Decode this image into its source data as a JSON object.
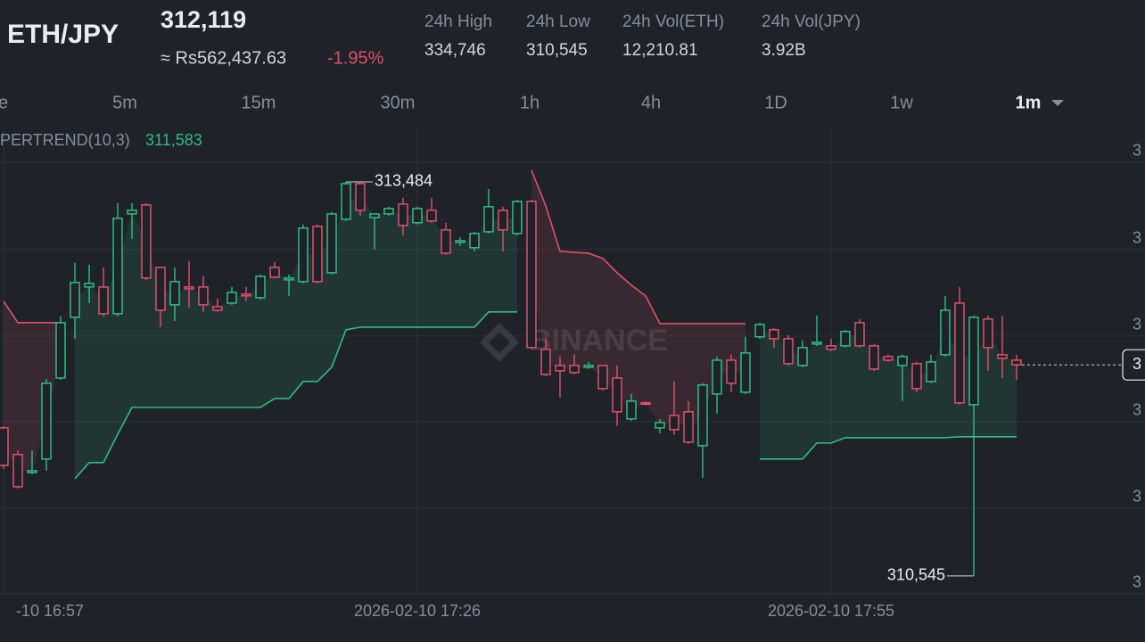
{
  "header": {
    "symbol": "ETH/JPY",
    "price": "312,119",
    "converted": "≈ Rs562,437.63",
    "change": "-1.95%",
    "stats": [
      {
        "label": "24h High",
        "value": "334,746"
      },
      {
        "label": "24h Low",
        "value": "310,545"
      },
      {
        "label": "24h Vol(ETH)",
        "value": "12,210.81"
      },
      {
        "label": "24h Vol(JPY)",
        "value": "3.92B"
      }
    ]
  },
  "intervals": [
    "e",
    "5m",
    "15m",
    "30m",
    "1h",
    "4h",
    "1D",
    "1w",
    "1m"
  ],
  "active_interval": "1m",
  "chart_data": {
    "type": "candlestick",
    "watermark": "BINANCE",
    "up_color": "#2ebd85",
    "down_color": "#e0506a",
    "categories": [
      "-10 16:57",
      null,
      null,
      null,
      null,
      null,
      null,
      null,
      null,
      null,
      null,
      null,
      null,
      null,
      null,
      null,
      null,
      null,
      null,
      null,
      null,
      null,
      null,
      null,
      null,
      null,
      null,
      null,
      null,
      "2026-02-10 17:26",
      null,
      null,
      null,
      null,
      null,
      null,
      null,
      null,
      null,
      null,
      null,
      null,
      null,
      null,
      null,
      null,
      null,
      null,
      null,
      null,
      null,
      null,
      null,
      null,
      null,
      null,
      null,
      null,
      "2026-02-10 17:55",
      null,
      null,
      null,
      null,
      null,
      null,
      null,
      null,
      null,
      null,
      null,
      null,
      null
    ],
    "open": [
      311649,
      311450,
      311317,
      311417,
      312021,
      312474,
      312700,
      312700,
      312501,
      313245,
      313312,
      312846,
      312567,
      312700,
      312700,
      312553,
      312580,
      312647,
      312620,
      312846,
      312753,
      312740,
      313152,
      312806,
      313205,
      313471,
      313218,
      313245,
      313318,
      313179,
      313272,
      313126,
      313033,
      312993,
      313112,
      313272,
      313099,
      313338,
      312235,
      312115,
      312115,
      312102,
      312115,
      312021,
      311716,
      311836,
      311649,
      311742,
      311769,
      311516,
      311902,
      312154,
      311915,
      312328,
      312381,
      312314,
      312115,
      312274,
      312261,
      312261,
      312434,
      312261,
      312181,
      312115,
      312128,
      311995,
      312195,
      312580,
      311822,
      312461,
      312195,
      312154
    ],
    "high": [
      311662,
      311483,
      311483,
      312015,
      312481,
      312880,
      312866,
      312846,
      313325,
      313325,
      313325,
      312846,
      312846,
      312893,
      312780,
      312614,
      312700,
      312700,
      312793,
      312886,
      312793,
      313166,
      313166,
      313259,
      313484,
      313484,
      313245,
      313299,
      313365,
      313299,
      313365,
      313179,
      313072,
      313112,
      313432,
      313299,
      313351,
      313351,
      312314,
      312181,
      312195,
      312141,
      312115,
      312115,
      311902,
      311849,
      311716,
      311995,
      311849,
      311982,
      312181,
      312195,
      312328,
      312434,
      312394,
      312341,
      312301,
      312487,
      312314,
      312381,
      312461,
      312274,
      312195,
      312195,
      312141,
      312195,
      312634,
      312700,
      312487,
      312487,
      312487,
      312195
    ],
    "low": [
      311343,
      311197,
      311304,
      311330,
      312008,
      312314,
      312580,
      312481,
      312481,
      313059,
      312753,
      312400,
      312447,
      312547,
      312514,
      312514,
      312567,
      312594,
      312607,
      312767,
      312634,
      312727,
      312727,
      312793,
      313192,
      313232,
      312979,
      313232,
      313085,
      313166,
      313179,
      312939,
      313006,
      312966,
      313099,
      312966,
      313085,
      312235,
      312035,
      311875,
      312048,
      312088,
      311929,
      311663,
      311703,
      311816,
      311609,
      311596,
      311530,
      311277,
      311755,
      311915,
      311902,
      312314,
      312248,
      312115,
      312102,
      312261,
      312221,
      312248,
      312248,
      312075,
      312141,
      311849,
      311915,
      311982,
      312181,
      311822,
      310545,
      312075,
      312021,
      312008
    ],
    "close": [
      311370,
      311210,
      311330,
      311982,
      312434,
      312733,
      312727,
      312501,
      313212,
      313272,
      312767,
      312527,
      312740,
      312686,
      312567,
      312527,
      312660,
      312634,
      312780,
      312773,
      312767,
      313139,
      312740,
      313245,
      313471,
      313272,
      313245,
      313285,
      313159,
      313285,
      313192,
      312952,
      313046,
      313099,
      313299,
      313126,
      313338,
      312248,
      312048,
      312075,
      312062,
      312115,
      311942,
      311769,
      311849,
      311829,
      311689,
      311636,
      311543,
      311969,
      312154,
      311982,
      312208,
      312420,
      312314,
      312128,
      312248,
      312287,
      312235,
      312368,
      312261,
      312088,
      312154,
      312181,
      311942,
      312141,
      312527,
      311836,
      312474,
      312248,
      312168,
      312119
    ],
    "supertrend": {
      "label": "PERTREND(10,3)",
      "value": 311583,
      "value_label": "311,583",
      "up": [
        null,
        null,
        null,
        null,
        null,
        311270,
        311390,
        311390,
        311602,
        311802,
        311802,
        311802,
        311802,
        311802,
        311802,
        311802,
        311802,
        311802,
        311802,
        311868,
        311868,
        311995,
        311995,
        312102,
        312381,
        312400,
        312400,
        312400,
        312400,
        312400,
        312400,
        312400,
        312400,
        312400,
        312514,
        312514,
        312514,
        null,
        null,
        null,
        null,
        null,
        null,
        null,
        null,
        null,
        null,
        null,
        null,
        null,
        null,
        null,
        null,
        311417,
        311417,
        311417,
        311417,
        311536,
        311536,
        311576,
        311576,
        311576,
        311576,
        311576,
        311576,
        311576,
        311576,
        311583,
        311583,
        311583,
        311583,
        311583
      ],
      "down": [
        312594,
        312434,
        312434,
        312434,
        312434,
        null,
        null,
        null,
        null,
        null,
        null,
        null,
        null,
        null,
        null,
        null,
        null,
        null,
        null,
        null,
        null,
        null,
        null,
        null,
        null,
        null,
        null,
        null,
        null,
        null,
        null,
        null,
        null,
        null,
        null,
        null,
        null,
        313571,
        313305,
        312966,
        312959,
        312952,
        312913,
        312806,
        312713,
        312634,
        312427,
        312427,
        312427,
        312427,
        312427,
        312427,
        312427,
        null,
        null,
        null,
        null,
        null,
        null,
        null,
        null,
        null,
        null,
        null,
        null,
        null,
        null,
        null,
        null,
        null,
        null,
        null
      ]
    },
    "annotations": [
      {
        "label": "313,484",
        "value": 313484
      },
      {
        "label": "310,545",
        "value": 310545
      }
    ],
    "last_price_label": "3",
    "ylim": [
      310398,
      313896
    ],
    "yticks": [
      {
        "value": 313630,
        "label": "3"
      },
      {
        "value": 312979,
        "label": "3"
      },
      {
        "value": 312334,
        "label": "3"
      },
      {
        "value": 311695,
        "label": "3"
      },
      {
        "value": 311050,
        "label": "3"
      },
      {
        "value": 310412,
        "label": "3"
      }
    ],
    "grid": true
  }
}
